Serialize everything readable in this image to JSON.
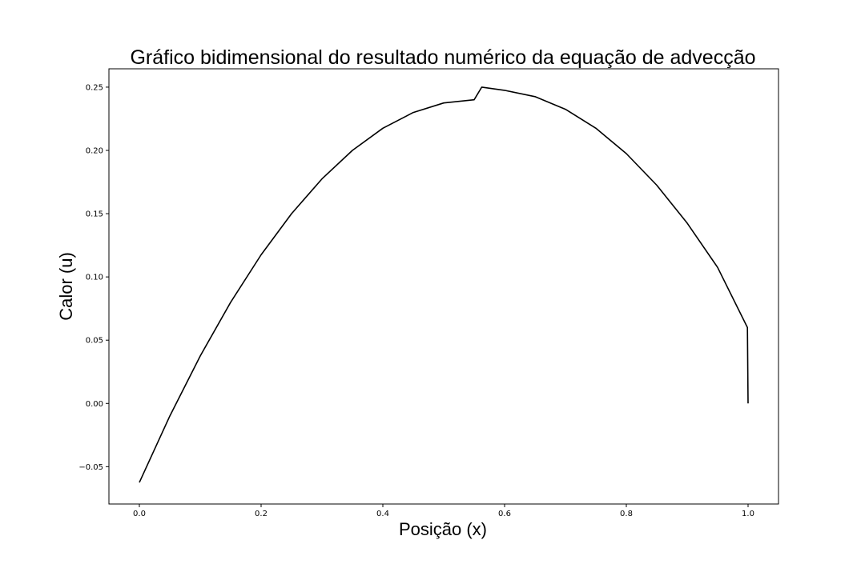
{
  "chart_data": {
    "type": "line",
    "title": "Gráfico bidimensional do resultado numérico da equação de advecção",
    "xlabel": "Posição (x)",
    "ylabel": "Calor (u)",
    "xlim": [
      -0.05,
      1.05
    ],
    "ylim": [
      -0.0795,
      0.2645
    ],
    "xticks": [
      {
        "value": 0.0,
        "label": "0.0"
      },
      {
        "value": 0.2,
        "label": "0.2"
      },
      {
        "value": 0.4,
        "label": "0.4"
      },
      {
        "value": 0.6,
        "label": "0.6"
      },
      {
        "value": 0.8,
        "label": "0.8"
      },
      {
        "value": 1.0,
        "label": "1.0"
      }
    ],
    "yticks": [
      {
        "value": -0.05,
        "label": "−0.05"
      },
      {
        "value": 0.0,
        "label": "0.00"
      },
      {
        "value": 0.05,
        "label": "0.05"
      },
      {
        "value": 0.1,
        "label": "0.10"
      },
      {
        "value": 0.15,
        "label": "0.15"
      },
      {
        "value": 0.2,
        "label": "0.20"
      },
      {
        "value": 0.25,
        "label": "0.25"
      }
    ],
    "grid": false,
    "series": [
      {
        "color": "#000000",
        "x": [
          0.0,
          0.05,
          0.1,
          0.15,
          0.2,
          0.25,
          0.3,
          0.35,
          0.4,
          0.45,
          0.5,
          0.55,
          0.5625,
          0.6,
          0.65,
          0.7,
          0.75,
          0.8,
          0.85,
          0.9,
          0.95,
          0.999,
          1.0
        ],
        "y": [
          -0.0625,
          -0.01,
          0.0375,
          0.08,
          0.1175,
          0.15,
          0.1775,
          0.2,
          0.2175,
          0.23,
          0.2375,
          0.24,
          0.25,
          0.2475,
          0.2425,
          0.2325,
          0.2175,
          0.1975,
          0.1725,
          0.1425,
          0.1075,
          0.06,
          0.0
        ]
      }
    ]
  }
}
